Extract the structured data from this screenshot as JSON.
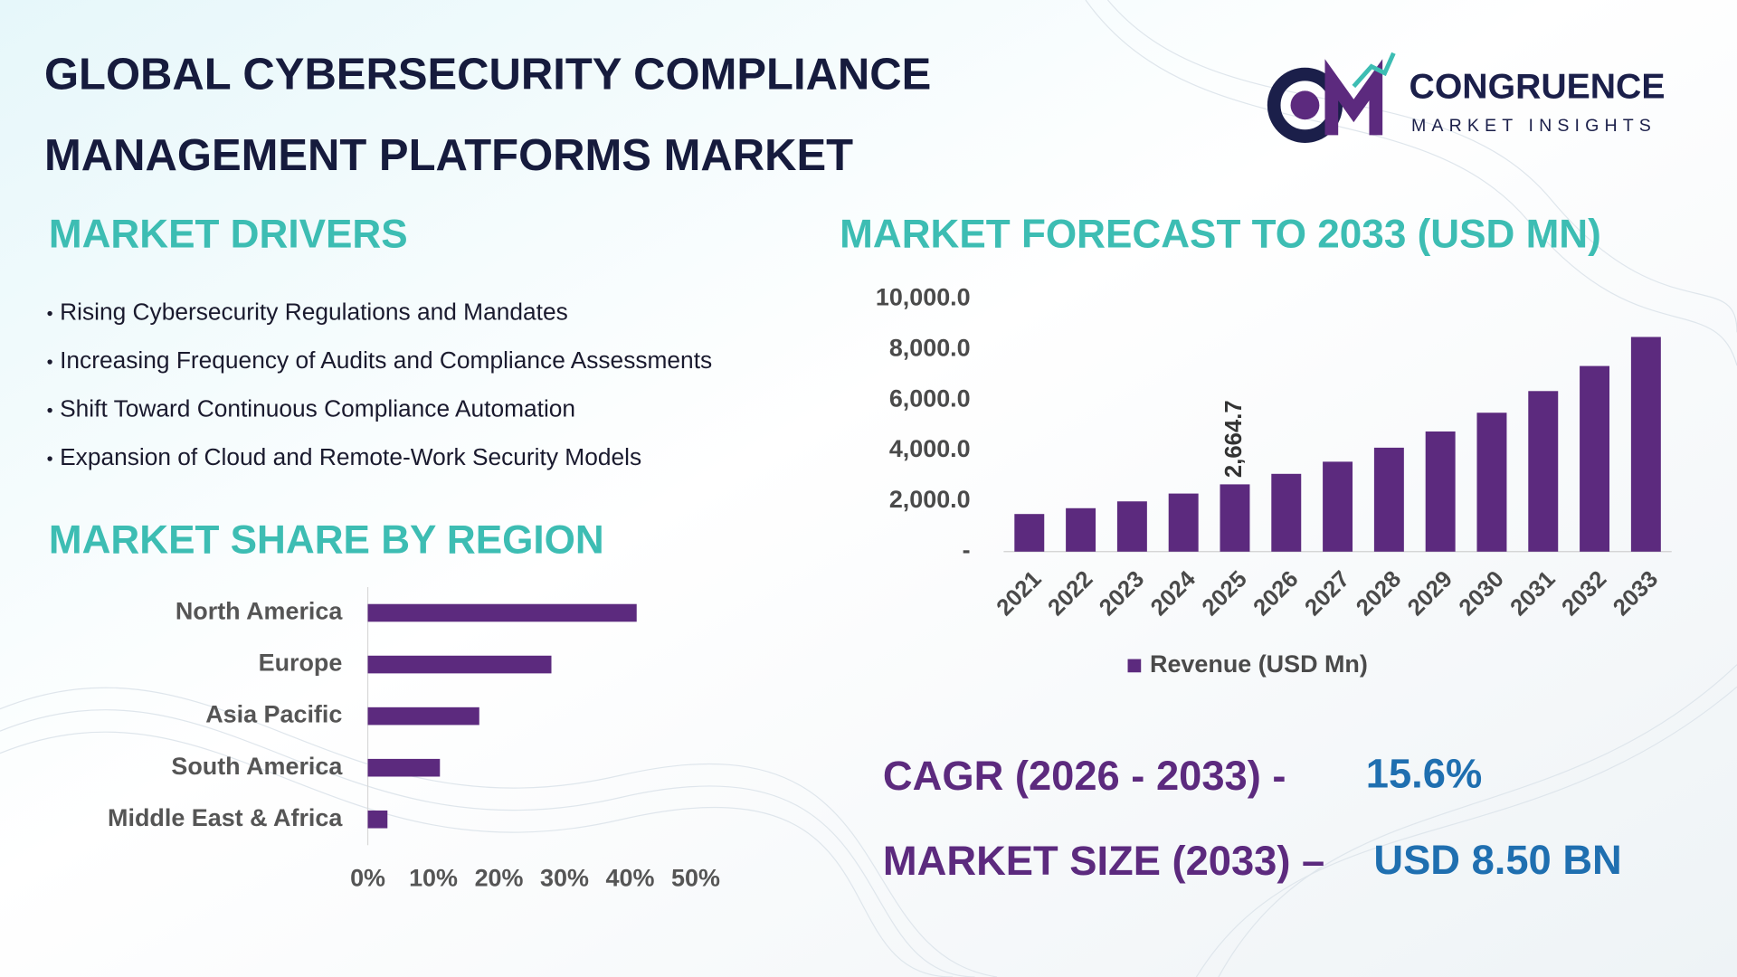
{
  "header": {
    "title_lines": [
      "GLOBAL CYBERSECURITY COMPLIANCE",
      "MANAGEMENT PLATFORMS MARKET"
    ],
    "logo_name": "CONGRUENCE",
    "logo_tagline": "MARKET INSIGHTS"
  },
  "drivers": {
    "title": "MARKET DRIVERS",
    "items": [
      "Rising Cybersecurity Regulations and Mandates",
      "Increasing Frequency of Audits and Compliance Assessments",
      "Shift Toward Continuous Compliance Automation",
      "Expansion of Cloud and Remote-Work Security Models"
    ]
  },
  "chart_data": [
    {
      "type": "bar",
      "title": "MARKET FORECAST TO 2033 (USD MN)",
      "categories": [
        "2021",
        "2022",
        "2023",
        "2024",
        "2025",
        "2026",
        "2027",
        "2028",
        "2029",
        "2030",
        "2031",
        "2032",
        "2033"
      ],
      "series": [
        {
          "name": "Revenue (USD Mn)",
          "color": "#5c2a7e",
          "values": [
            1490,
            1720,
            1990,
            2300,
            2664.7,
            3080,
            3561,
            4116,
            4758,
            5500,
            6358,
            7350,
            8500
          ],
          "value_labels": [
            null,
            null,
            null,
            null,
            "2,664.7",
            null,
            null,
            null,
            null,
            null,
            null,
            null,
            null
          ]
        }
      ],
      "ylim": [
        0,
        10000
      ],
      "yticks": [
        {
          "value": 0,
          "label": "-"
        },
        {
          "value": 2000,
          "label": "2,000.0"
        },
        {
          "value": 4000,
          "label": "4,000.0"
        },
        {
          "value": 6000,
          "label": "6,000.0"
        },
        {
          "value": 8000,
          "label": "8,000.0"
        },
        {
          "value": 10000,
          "label": "10,000.0"
        }
      ],
      "grid": false,
      "legend": "bottom"
    },
    {
      "type": "barh",
      "title": "MARKET SHARE BY REGION",
      "categories": [
        "North America",
        "Europe",
        "Asia Pacific",
        "South America",
        "Middle East & Africa"
      ],
      "values": [
        41,
        28,
        17,
        11,
        3
      ],
      "color": "#5c2a7e",
      "xlim": [
        0,
        50
      ],
      "xticks": [
        {
          "value": 0,
          "label": "0%"
        },
        {
          "value": 10,
          "label": "10%"
        },
        {
          "value": 20,
          "label": "20%"
        },
        {
          "value": 30,
          "label": "30%"
        },
        {
          "value": 40,
          "label": "40%"
        },
        {
          "value": 50,
          "label": "50%"
        }
      ],
      "grid": false
    }
  ],
  "stats": {
    "cagr_label": "CAGR (2026 - 2033) -",
    "cagr_value": "15.6%",
    "size_label": "MARKET SIZE (2033) –",
    "size_value": "USD 8.50 BN"
  }
}
